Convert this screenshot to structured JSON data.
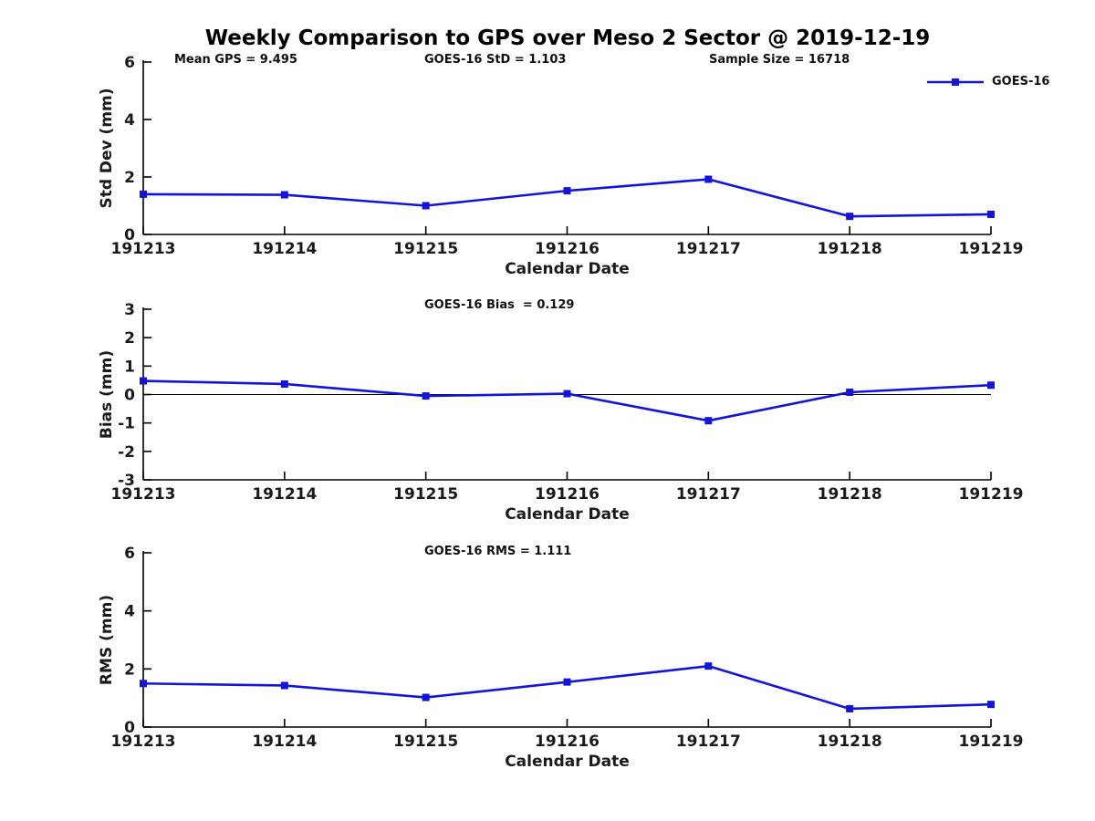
{
  "page": {
    "title": "Weekly Comparison to GPS over Meso 2 Sector @ 2019-12-19",
    "background": "#ffffff"
  },
  "colors": {
    "series": "#1414d8",
    "axis": "#000000",
    "text": "#1a1a1a",
    "zero_line": "#000000"
  },
  "legend": {
    "label": "GOES-16",
    "position": "top-right"
  },
  "chart_data": [
    {
      "type": "line",
      "name": "stddev",
      "categories": [
        "191213",
        "191214",
        "191215",
        "191216",
        "191217",
        "191218",
        "191219"
      ],
      "series": [
        {
          "name": "GOES-16",
          "values": [
            1.4,
            1.38,
            1.0,
            1.52,
            1.92,
            0.63,
            0.7
          ]
        }
      ],
      "xlabel": "Calendar Date",
      "ylabel": "Std Dev (mm)",
      "ylim": [
        0,
        6
      ],
      "yticks": [
        0,
        2,
        4,
        6
      ],
      "grid": false,
      "marker": "square",
      "annotations": [
        {
          "text": "Mean GPS = 9.495"
        },
        {
          "text": "GOES-16 StD = 1.103"
        },
        {
          "text": "Sample Size = 16718"
        }
      ]
    },
    {
      "type": "line",
      "name": "bias",
      "categories": [
        "191213",
        "191214",
        "191215",
        "191216",
        "191217",
        "191218",
        "191219"
      ],
      "series": [
        {
          "name": "GOES-16",
          "values": [
            0.48,
            0.37,
            -0.05,
            0.03,
            -0.92,
            0.08,
            0.33
          ]
        }
      ],
      "xlabel": "Calendar Date",
      "ylabel": "Bias (mm)",
      "ylim": [
        -3,
        3
      ],
      "yticks": [
        -3,
        -2,
        -1,
        0,
        1,
        2,
        3
      ],
      "zero_line": true,
      "grid": false,
      "marker": "square",
      "annotations": [
        {
          "text": "GOES-16 Bias  = 0.129"
        }
      ]
    },
    {
      "type": "line",
      "name": "rms",
      "categories": [
        "191213",
        "191214",
        "191215",
        "191216",
        "191217",
        "191218",
        "191219"
      ],
      "series": [
        {
          "name": "GOES-16",
          "values": [
            1.5,
            1.43,
            1.02,
            1.55,
            2.1,
            0.63,
            0.78
          ]
        }
      ],
      "xlabel": "Calendar Date",
      "ylabel": "RMS (mm)",
      "ylim": [
        0,
        6
      ],
      "yticks": [
        0,
        2,
        4,
        6
      ],
      "grid": false,
      "marker": "square",
      "annotations": [
        {
          "text": "GOES-16 RMS = 1.111"
        }
      ]
    }
  ]
}
